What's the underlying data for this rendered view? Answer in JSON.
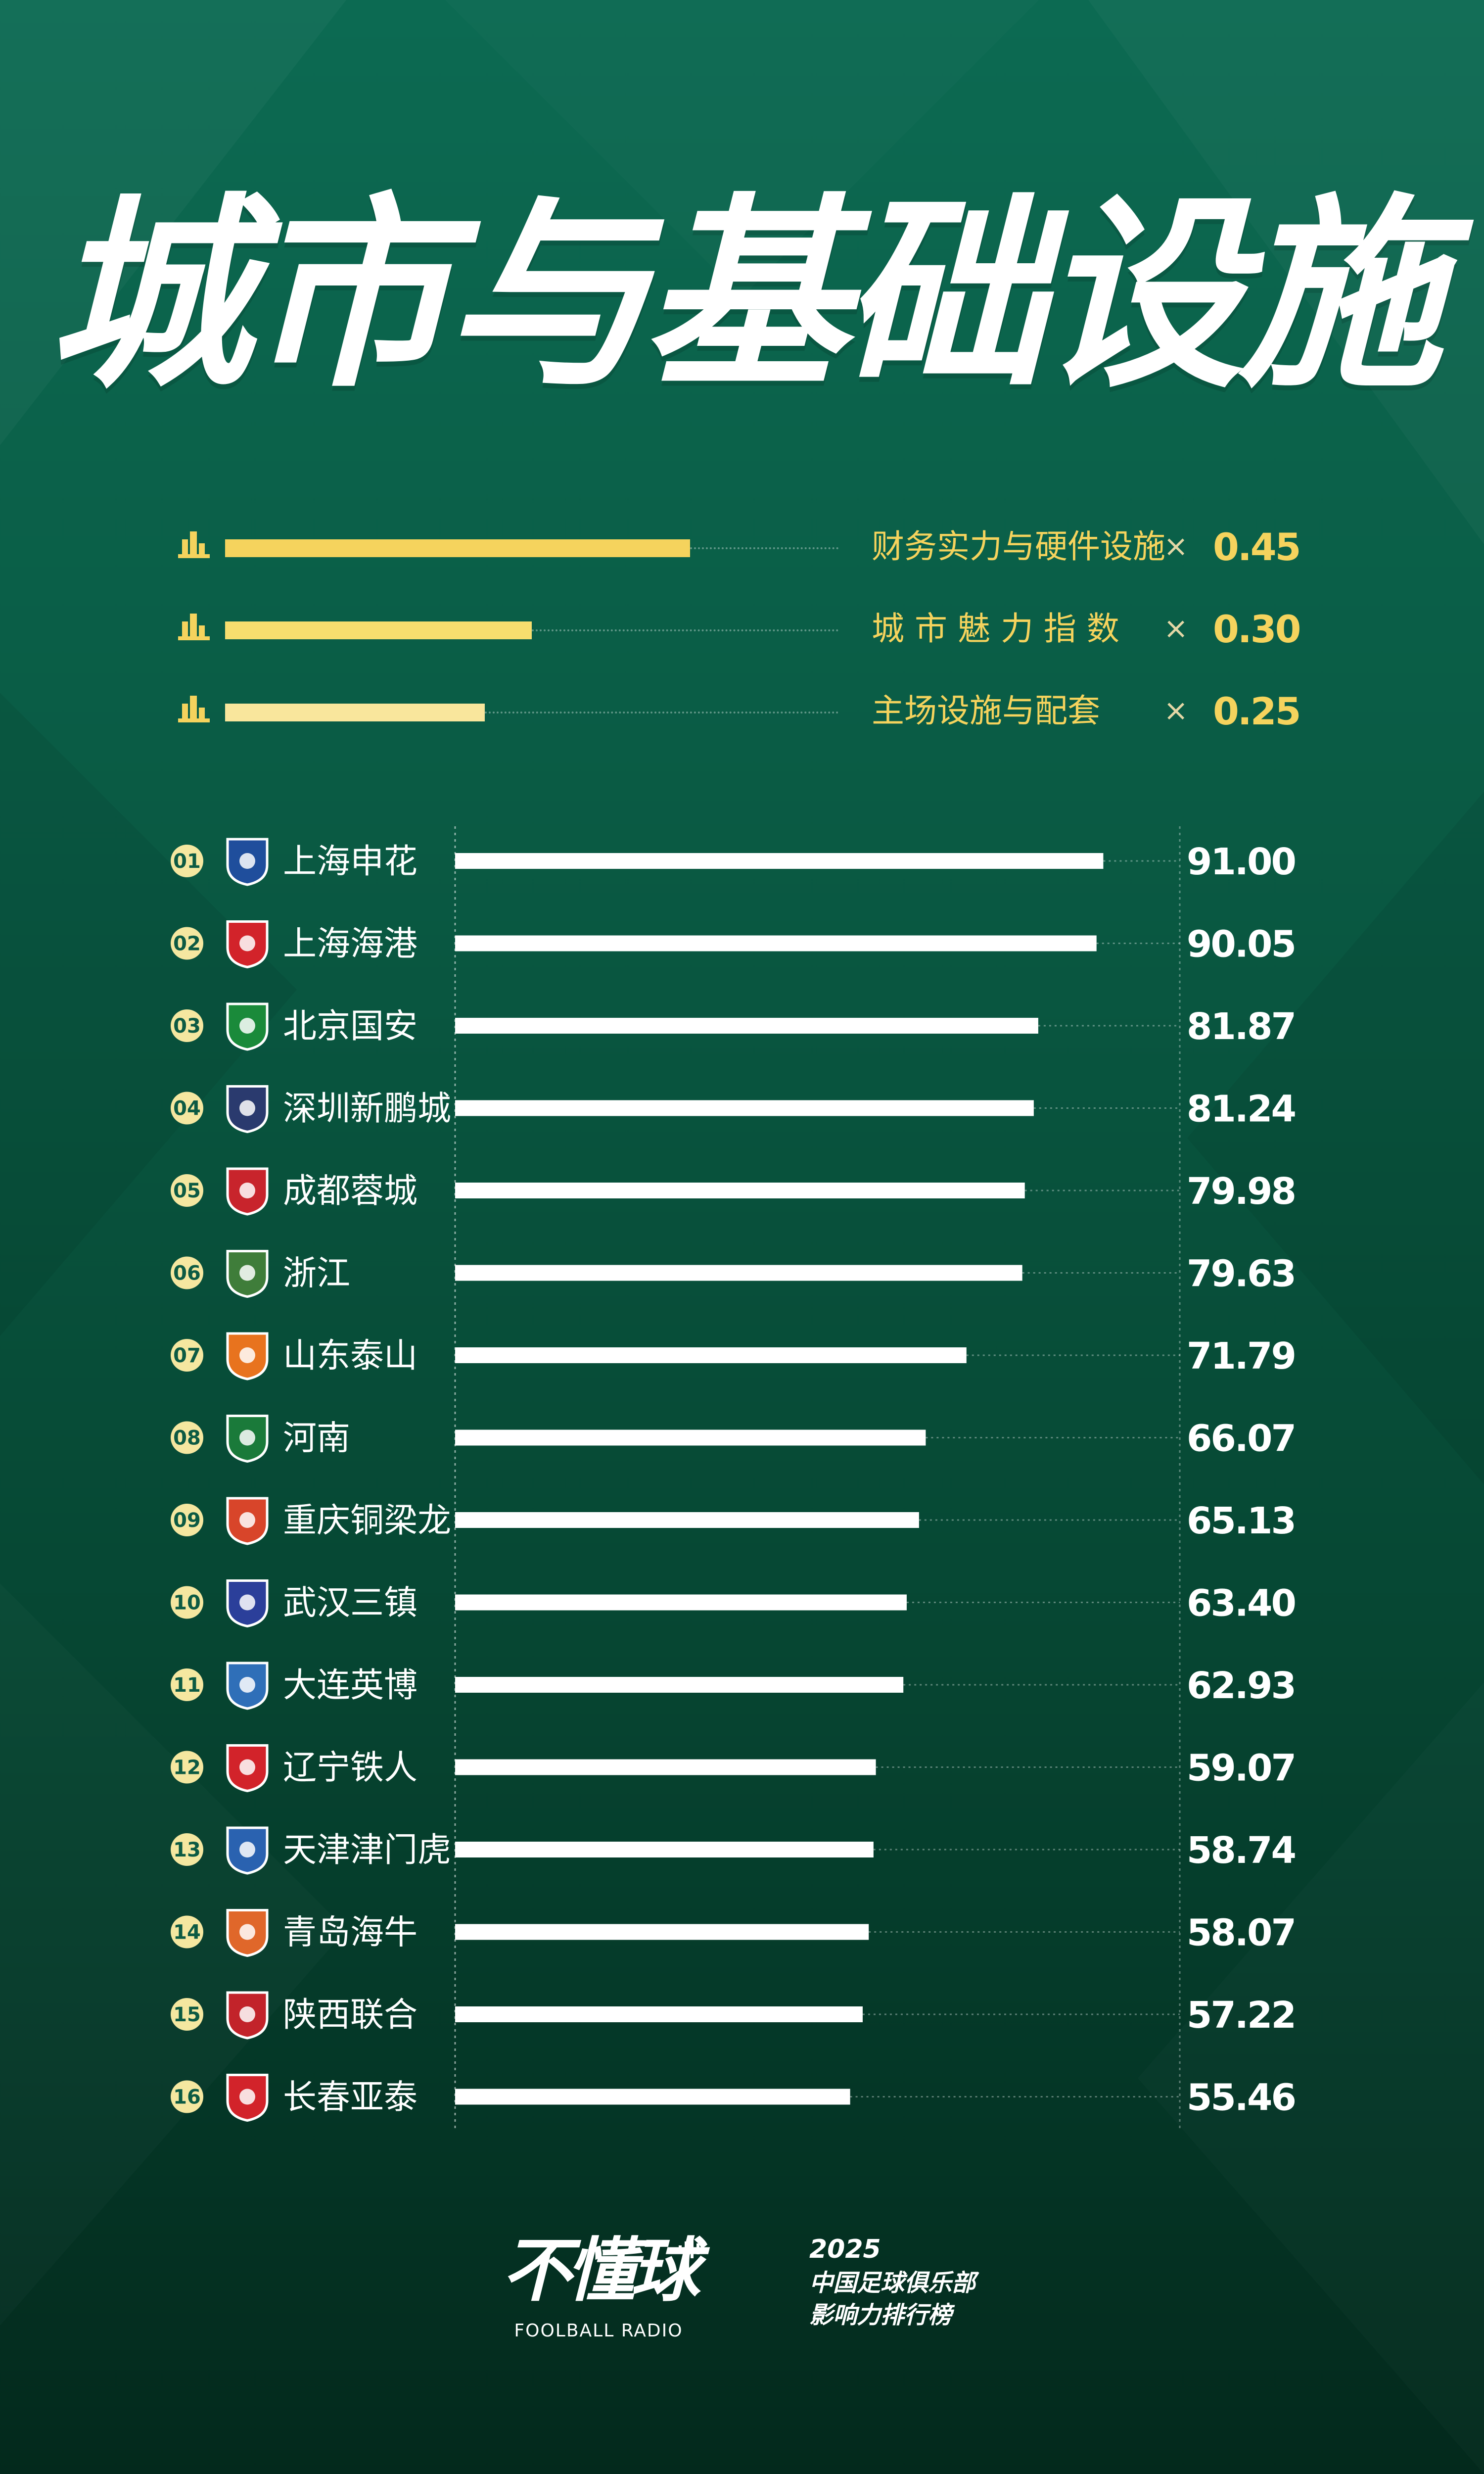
{
  "title": "城市与基础设施",
  "weights": [
    {
      "label": "财务实力与硬件设施",
      "times": "×",
      "multiplier": "0.45",
      "bar_color": "#f5d35d"
    },
    {
      "label": "城 市 魅 力 指 数",
      "times": "×",
      "multiplier": "0.30",
      "bar_color": "#f7de6e"
    },
    {
      "label": "主场设施与配套",
      "times": "×",
      "multiplier": "0.25",
      "bar_color": "#f9e69c"
    }
  ],
  "colors": {
    "accent": "#f5d35d",
    "bar": "#ffffff",
    "rank_badge": "#f5e7a0",
    "background_top": "#0c6a52",
    "background_bottom": "#03291c"
  },
  "chart_data": {
    "type": "bar",
    "orientation": "horizontal",
    "xlim": [
      0,
      100
    ],
    "categories": [
      "上海申花",
      "上海海港",
      "北京国安",
      "深圳新鹏城",
      "成都蓉城",
      "浙江",
      "山东泰山",
      "河南",
      "重庆铜梁龙",
      "武汉三镇",
      "大连英博",
      "辽宁铁人",
      "天津津门虎",
      "青岛海牛",
      "陕西联合",
      "长春亚泰"
    ],
    "ranks": [
      "01",
      "02",
      "03",
      "04",
      "05",
      "06",
      "07",
      "08",
      "09",
      "10",
      "11",
      "12",
      "13",
      "14",
      "15",
      "16"
    ],
    "values": [
      91.0,
      90.05,
      81.87,
      81.24,
      79.98,
      79.63,
      71.79,
      66.07,
      65.13,
      63.4,
      62.93,
      59.07,
      58.74,
      58.07,
      57.22,
      55.46
    ],
    "value_labels": [
      "91.00",
      "90.05",
      "81.87",
      "81.24",
      "79.98",
      "79.63",
      "71.79",
      "66.07",
      "65.13",
      "63.40",
      "62.93",
      "59.07",
      "58.74",
      "58.07",
      "57.22",
      "55.46"
    ],
    "team_colors": [
      "#1f4e9c",
      "#d2232a",
      "#1a8a3a",
      "#2a3a6e",
      "#c8242c",
      "#3f7d3a",
      "#e8731e",
      "#1a7a3a",
      "#d8452a",
      "#2b3f9a",
      "#2f6fb8",
      "#d2232a",
      "#2a62b0",
      "#e0672a",
      "#c2232a",
      "#d2232a"
    ]
  },
  "footer": {
    "brand": "不懂球",
    "brand_en": "FOOLBALL RADIO",
    "year": "2025",
    "line1": "中国足球俱乐部",
    "line2": "影响力排行榜"
  }
}
